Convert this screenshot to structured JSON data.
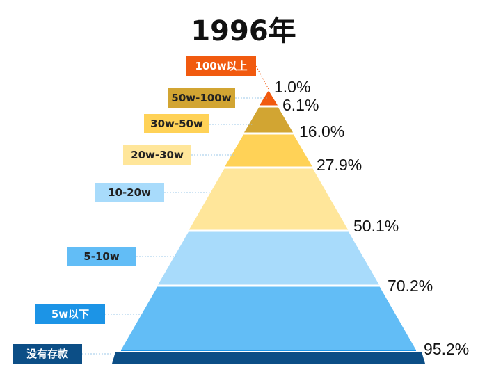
{
  "title": "1996年",
  "chart_data": {
    "type": "pyramid",
    "title": "1996年",
    "tiers": [
      {
        "label": "100w以上",
        "cumulative": "1.0%",
        "color": "#F15A0F",
        "text_color": "#ffffff"
      },
      {
        "label": "50w-100w",
        "cumulative": "6.1%",
        "color": "#D2A532",
        "text_color": "#222222"
      },
      {
        "label": "30w-50w",
        "cumulative": "16.0%",
        "color": "#FFD257",
        "text_color": "#222222"
      },
      {
        "label": "20w-30w",
        "cumulative": "27.9%",
        "color": "#FFE69A",
        "text_color": "#222222"
      },
      {
        "label": "10-20w",
        "cumulative": "50.1%",
        "color": "#A8DBFB",
        "text_color": "#222222"
      },
      {
        "label": "5-10w",
        "cumulative": "70.2%",
        "color": "#62BDF6",
        "text_color": "#222222"
      },
      {
        "label": "5w以下",
        "cumulative": "95.2%",
        "color": "#1C94E6",
        "text_color": "#ffffff"
      },
      {
        "label": "没有存款",
        "cumulative": "",
        "color": "#0C4E86",
        "text_color": "#ffffff"
      }
    ]
  }
}
